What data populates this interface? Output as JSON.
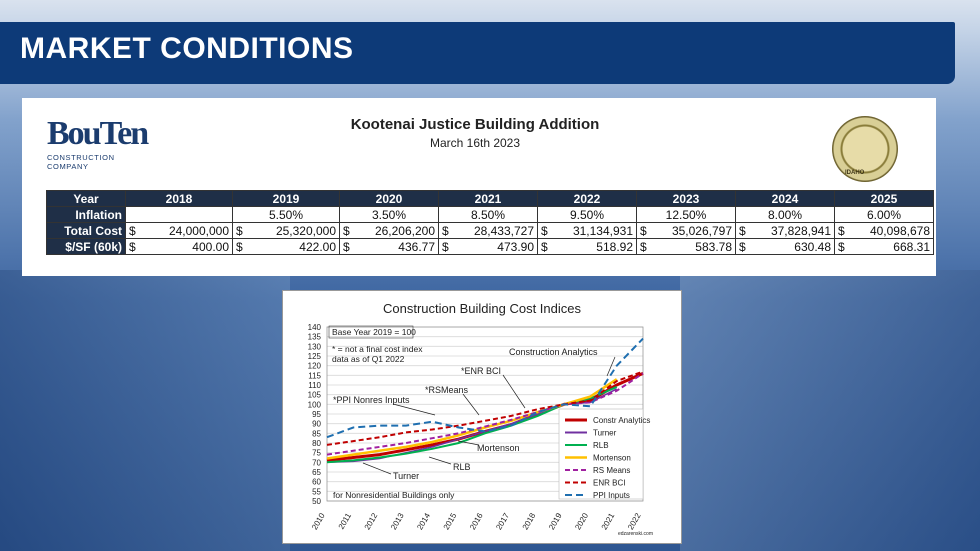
{
  "slide": {
    "title": "MARKET CONDITIONS"
  },
  "logo": {
    "name": "BouTen",
    "subtitle": "CONSTRUCTION COMPANY"
  },
  "seal": {
    "text": "IDAHO"
  },
  "project": {
    "title": "Kootenai Justice Building Addition",
    "date": "March 16th 2023"
  },
  "cost_table": {
    "year_label": "Year",
    "years": [
      "2018",
      "2019",
      "2020",
      "2021",
      "2022",
      "2023",
      "2024",
      "2025"
    ],
    "rows": [
      {
        "label": "Inflation",
        "cells": [
          "",
          "5.50%",
          "3.50%",
          "8.50%",
          "9.50%",
          "12.50%",
          "8.00%",
          "6.00%"
        ],
        "currency": false
      },
      {
        "label": "Total Cost",
        "cells": [
          "24,000,000",
          "25,320,000",
          "26,206,200",
          "28,433,727",
          "31,134,931",
          "35,026,797",
          "37,828,941",
          "40,098,678"
        ],
        "currency": true
      },
      {
        "label": "$/SF (60k)",
        "cells": [
          "400.00",
          "422.00",
          "436.77",
          "473.90",
          "518.92",
          "583.78",
          "630.48",
          "668.31"
        ],
        "currency": true
      }
    ],
    "currency_symbol": "$"
  },
  "colors": {
    "title_bar": "#0d3a78",
    "table_header": "#1f2f47"
  },
  "chart_data": {
    "type": "line",
    "title": "Construction Building Cost Indices",
    "x": [
      2010,
      2011,
      2012,
      2013,
      2014,
      2015,
      2016,
      2017,
      2018,
      2019,
      2020,
      2021,
      2022
    ],
    "xlabels": [
      "2010",
      "2011",
      "2012",
      "2013",
      "2014",
      "2015",
      "2016",
      "2017",
      "2018",
      "2019",
      "2020",
      "2021",
      "2022"
    ],
    "ylim": [
      50,
      140
    ],
    "yticks": [
      50,
      55,
      60,
      65,
      70,
      75,
      80,
      85,
      90,
      95,
      100,
      105,
      110,
      115,
      120,
      125,
      130,
      135,
      140
    ],
    "series": [
      {
        "name": "Constr Analytics",
        "color": "#c00000",
        "dash": "",
        "width": 3,
        "x": [
          2010,
          2011,
          2012,
          2013,
          2014,
          2015,
          2016,
          2017,
          2018,
          2019,
          2020,
          2020.5,
          2021,
          2021.5,
          2022
        ],
        "values": [
          71,
          72.5,
          74,
          76.5,
          79,
          82,
          86,
          89.5,
          95,
          100,
          102,
          106,
          110,
          113,
          116
        ]
      },
      {
        "name": "Turner",
        "color": "#7030a0",
        "dash": "",
        "width": 1.5,
        "x": [
          2010,
          2011,
          2012,
          2013,
          2014,
          2015,
          2016,
          2017,
          2018,
          2019,
          2020,
          2021
        ],
        "values": [
          70,
          70.5,
          72,
          75,
          78,
          82,
          86,
          90,
          95,
          100,
          101,
          108
        ]
      },
      {
        "name": "RLB",
        "color": "#00b050",
        "dash": "",
        "width": 2,
        "x": [
          2010,
          2011,
          2012,
          2013,
          2014,
          2015,
          2016,
          2017,
          2018,
          2019,
          2020,
          2021
        ],
        "values": [
          70,
          71,
          72.5,
          74.5,
          77,
          80,
          85,
          89,
          94,
          100,
          103,
          109
        ]
      },
      {
        "name": "Mortenson",
        "color": "#ffc000",
        "dash": "",
        "width": 2.5,
        "x": [
          2010,
          2011,
          2012,
          2013,
          2014,
          2015,
          2016,
          2017,
          2018,
          2019,
          2020,
          2021
        ],
        "values": [
          72,
          74,
          76,
          78,
          80.5,
          84,
          88,
          91.5,
          96,
          100,
          104,
          113
        ]
      },
      {
        "name": "RS Means",
        "color": "#a020a0",
        "dash": "5,3",
        "width": 2,
        "x": [
          2010,
          2011,
          2012,
          2013,
          2014,
          2015,
          2016,
          2017,
          2018,
          2019,
          2020,
          2021,
          2022
        ],
        "values": [
          74,
          76,
          78,
          80,
          82.5,
          85,
          88.5,
          92,
          96,
          100,
          101,
          107,
          116
        ]
      },
      {
        "name": "ENR BCI",
        "color": "#c00000",
        "dash": "5,3",
        "width": 2,
        "x": [
          2010,
          2011,
          2012,
          2013,
          2014,
          2015,
          2016,
          2017,
          2018,
          2019,
          2020,
          2021,
          2022
        ],
        "values": [
          79,
          81,
          83,
          85.5,
          87,
          89,
          91.5,
          94,
          97.5,
          100,
          102,
          112,
          117
        ]
      },
      {
        "name": "PPI Inputs",
        "color": "#1f6fb0",
        "dash": "7,4",
        "width": 2,
        "x": [
          2010,
          2011,
          2012,
          2013,
          2014,
          2015,
          2016,
          2017,
          2018,
          2019,
          2020,
          2021,
          2022
        ],
        "values": [
          83,
          88,
          89,
          89,
          91,
          88,
          86,
          89,
          96,
          100,
          99,
          120,
          134
        ]
      }
    ],
    "annotations": [
      "Base Year 2019 = 100",
      "* = not a final cost index",
      "data as of Q1 2022",
      "*ENR BCI",
      "*RSMeans",
      "*PPI Nonres Inputs",
      "Construction Analytics",
      "Mortenson",
      "RLB",
      "Turner",
      "for Nonresidential Buildings only",
      "edzarenski.com"
    ],
    "legend_position": "right"
  }
}
